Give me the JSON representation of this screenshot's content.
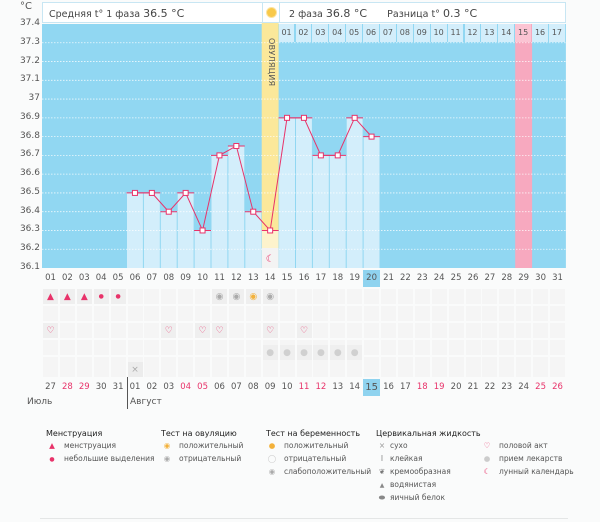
{
  "header": {
    "unit": "°C",
    "phase1_label": "Средняя t° 1 фаза",
    "phase1_value": "36.5 °C",
    "phase2_label": "2 фаза",
    "phase2_value": "36.8 °C",
    "diff_label": "Разница t°",
    "diff_value": "0.3 °C",
    "ovulation_label": "ОВУЛЯЦИЯ"
  },
  "chart_data": {
    "type": "bar",
    "title": "",
    "ylabel": "°C",
    "ylim": [
      36.1,
      37.4
    ],
    "yticks": [
      "37.4",
      "37.3",
      "37.2",
      "37.1",
      "37",
      "36.9",
      "36.8",
      "36.7",
      "36.6",
      "36.5",
      "36.4",
      "36.3",
      "36.2",
      "36.1"
    ],
    "categories": [
      "01",
      "02",
      "03",
      "04",
      "05",
      "06",
      "07",
      "08",
      "09",
      "10",
      "11",
      "12",
      "13",
      "14",
      "15",
      "16",
      "17",
      "18",
      "19",
      "20",
      "21",
      "22",
      "23",
      "24",
      "25",
      "26",
      "27",
      "28",
      "29",
      "30",
      "31"
    ],
    "values": [
      null,
      null,
      null,
      null,
      null,
      36.5,
      36.5,
      36.4,
      36.5,
      36.3,
      36.7,
      36.75,
      36.4,
      36.3,
      36.9,
      36.9,
      36.7,
      36.7,
      36.9,
      36.8,
      null,
      null,
      null,
      null,
      null,
      null,
      null,
      null,
      null,
      null,
      null
    ],
    "ovulation_day": "14",
    "highlight_day": "29",
    "selected_day": "20",
    "phase2_days": [
      "01",
      "02",
      "03",
      "04",
      "05",
      "06",
      "07",
      "08",
      "09",
      "10",
      "11",
      "12",
      "13",
      "14",
      "15",
      "16",
      "17"
    ],
    "phase2_highlight": "15"
  },
  "rows": {
    "menstruation": [
      "heavy",
      "heavy",
      "heavy",
      "light",
      "light"
    ],
    "ovulation_test": {
      "11": "negative",
      "12": "negative",
      "13": "positive",
      "14": "negative"
    },
    "sex_days": [
      "01",
      "08",
      "10",
      "11",
      "14",
      "16"
    ],
    "medicine_days": [
      "14",
      "15",
      "16",
      "17",
      "18",
      "19"
    ],
    "cervical_dry_day": "06",
    "moon_day": "14"
  },
  "calendar": {
    "dates": [
      "27",
      "28",
      "29",
      "30",
      "31",
      "01",
      "02",
      "03",
      "04",
      "05",
      "06",
      "07",
      "08",
      "09",
      "10",
      "11",
      "12",
      "13",
      "14",
      "15",
      "16",
      "17",
      "18",
      "19",
      "20",
      "21",
      "22",
      "23",
      "24",
      "25",
      "26"
    ],
    "red": [
      "28",
      "29",
      "04",
      "05",
      "11",
      "12",
      "18",
      "19",
      "25",
      "26"
    ],
    "selected": "15",
    "month1": "Июль",
    "month2": "Август"
  },
  "legend": {
    "menstruation": {
      "title": "Менструация",
      "items": [
        "менструация",
        "небольшие выделения"
      ]
    },
    "ovulation_test": {
      "title": "Тест на овуляцию",
      "items": [
        "положительный",
        "отрицательный"
      ]
    },
    "pregnancy_test": {
      "title": "Тест на беременность",
      "items": [
        "положительный",
        "отрицательный",
        "слабоположительный"
      ]
    },
    "cervical": {
      "title": "Цервикальная жидкость",
      "items": [
        "сухо",
        "клейкая",
        "кремообразная",
        "водянистая",
        "яичный белок"
      ]
    },
    "other": {
      "items": [
        "половой акт",
        "прием лекарств",
        "лунный календарь"
      ]
    }
  },
  "colors": {
    "plot_bg": "#91d7f2",
    "bar": "#d3eefb",
    "line": "#e8336a",
    "ovulation": "#fbe89a",
    "highlight": "#f7a9bf",
    "red_text": "#e8336a"
  }
}
